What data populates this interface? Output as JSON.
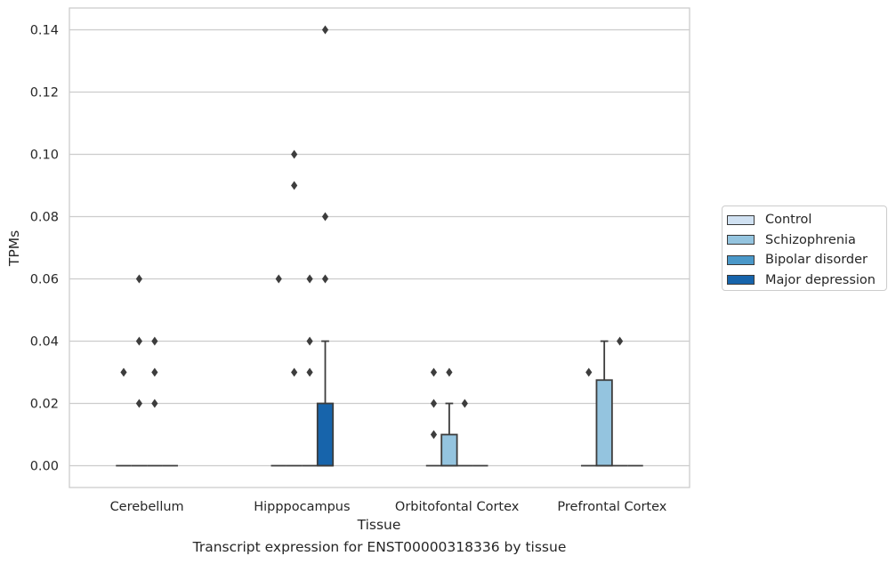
{
  "chart_data": {
    "type": "box",
    "title": "",
    "caption": "Transcript expression for ENST00000318336 by tissue",
    "xlabel": "Tissue",
    "ylabel": "TPMs",
    "ylim": [
      -0.007,
      0.147
    ],
    "yticks": [
      0.0,
      0.02,
      0.04,
      0.06,
      0.08,
      0.1,
      0.12,
      0.14
    ],
    "ytick_labels": [
      "0.00",
      "0.02",
      "0.04",
      "0.06",
      "0.08",
      "0.10",
      "0.12",
      "0.14"
    ],
    "grid": "horizontal",
    "legend_position": "right",
    "categories": [
      "Cerebellum",
      "Hipppocampus",
      "Orbitofontal Cortex",
      "Prefrontal Cortex"
    ],
    "series": [
      {
        "name": "Control",
        "color": "#d0e1f2",
        "boxes": [
          {
            "q1": 0,
            "median": 0,
            "q3": 0,
            "whisker_low": 0,
            "whisker_high": 0,
            "outliers": [
              0.03
            ]
          },
          {
            "q1": 0,
            "median": 0,
            "q3": 0,
            "whisker_low": 0,
            "whisker_high": 0,
            "outliers": [
              0.06
            ]
          },
          {
            "q1": 0,
            "median": 0,
            "q3": 0,
            "whisker_low": 0,
            "whisker_high": 0,
            "outliers": [
              0.03,
              0.02,
              0.01
            ]
          },
          {
            "q1": 0,
            "median": 0,
            "q3": 0,
            "whisker_low": 0,
            "whisker_high": 0,
            "outliers": [
              0.03
            ]
          }
        ]
      },
      {
        "name": "Schizophrenia",
        "color": "#94c4df",
        "boxes": [
          {
            "q1": 0,
            "median": 0,
            "q3": 0,
            "whisker_low": 0,
            "whisker_high": 0,
            "outliers": [
              0.06,
              0.04,
              0.02
            ]
          },
          {
            "q1": 0,
            "median": 0,
            "q3": 0,
            "whisker_low": 0,
            "whisker_high": 0,
            "outliers": [
              0.1,
              0.09,
              0.03
            ]
          },
          {
            "q1": 0,
            "median": 0,
            "q3": 0.01,
            "whisker_low": 0,
            "whisker_high": 0.02,
            "outliers": [
              0.03
            ]
          },
          {
            "q1": 0,
            "median": 0,
            "q3": 0.0275,
            "whisker_low": 0,
            "whisker_high": 0.04,
            "outliers": []
          }
        ]
      },
      {
        "name": "Bipolar disorder",
        "color": "#4a98c9",
        "boxes": [
          {
            "q1": 0,
            "median": 0,
            "q3": 0,
            "whisker_low": 0,
            "whisker_high": 0,
            "outliers": [
              0.04,
              0.03,
              0.02
            ]
          },
          {
            "q1": 0,
            "median": 0,
            "q3": 0,
            "whisker_low": 0,
            "whisker_high": 0,
            "outliers": [
              0.06,
              0.04,
              0.03
            ]
          },
          {
            "q1": 0,
            "median": 0,
            "q3": 0,
            "whisker_low": 0,
            "whisker_high": 0,
            "outliers": [
              0.02
            ]
          },
          {
            "q1": 0,
            "median": 0,
            "q3": 0,
            "whisker_low": 0,
            "whisker_high": 0,
            "outliers": [
              0.04
            ]
          }
        ]
      },
      {
        "name": "Major depression",
        "color": "#1764ab",
        "boxes": [
          {
            "q1": 0,
            "median": 0,
            "q3": 0,
            "whisker_low": 0,
            "whisker_high": 0,
            "outliers": []
          },
          {
            "q1": 0,
            "median": 0,
            "q3": 0.02,
            "whisker_low": 0,
            "whisker_high": 0.04,
            "outliers": [
              0.14,
              0.08,
              0.06
            ]
          },
          {
            "q1": 0,
            "median": 0,
            "q3": 0,
            "whisker_low": 0,
            "whisker_high": 0,
            "outliers": []
          },
          {
            "q1": 0,
            "median": 0,
            "q3": 0,
            "whisker_low": 0,
            "whisker_high": 0,
            "outliers": []
          }
        ]
      }
    ]
  }
}
